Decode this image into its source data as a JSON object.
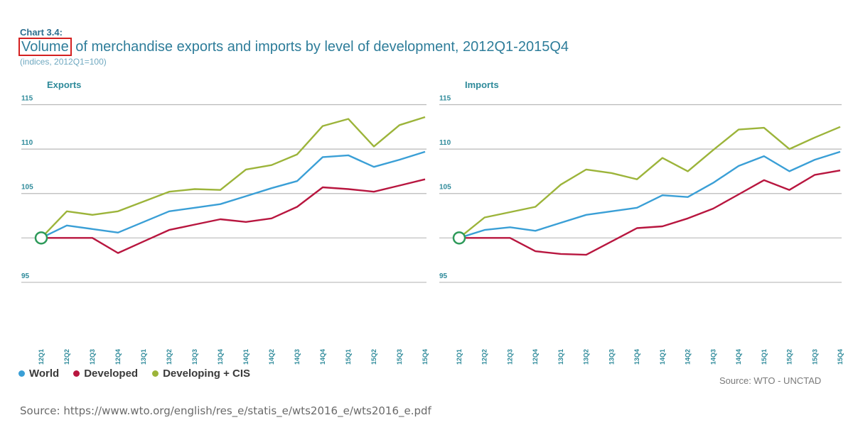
{
  "header": {
    "chart_label": "Chart 3.4:",
    "title_highlight": "Volume",
    "title_rest": " of merchandise exports and imports by level of development, 2012Q1-2015Q4",
    "subtitle": "(indices, 2012Q1=100)"
  },
  "legend": [
    {
      "name": "World",
      "color": "#3a9fd6"
    },
    {
      "name": "Developed",
      "color": "#b8163f"
    },
    {
      "name": "Developing + CIS",
      "color": "#9cb43a"
    }
  ],
  "source_short": "Source:  WTO - UNCTAD",
  "source_url": "Source: https://www.wto.org/english/res_e/statis_e/wts2016_e/wts2016_e.pdf",
  "chart_data": [
    {
      "type": "line",
      "title": "Exports",
      "categories": [
        "12Q1",
        "12Q2",
        "12Q3",
        "12Q4",
        "13Q1",
        "13Q2",
        "13Q3",
        "13Q4",
        "14Q1",
        "14Q2",
        "14Q3",
        "14Q4",
        "15Q1",
        "15Q2",
        "15Q3",
        "15Q4"
      ],
      "yticks": [
        95,
        100,
        105,
        110,
        115
      ],
      "ytick_labels": [
        "95",
        "",
        "105",
        "110",
        "115"
      ],
      "ylim": [
        91,
        116
      ],
      "series": [
        {
          "name": "World",
          "values": [
            100.0,
            101.4,
            101.0,
            100.6,
            101.8,
            103.0,
            103.4,
            103.8,
            104.7,
            105.6,
            106.4,
            109.1,
            109.3,
            108.0,
            108.8,
            109.7
          ]
        },
        {
          "name": "Developed",
          "values": [
            100.0,
            100.0,
            100.0,
            98.3,
            99.6,
            100.9,
            101.5,
            102.1,
            101.8,
            102.2,
            103.5,
            105.7,
            105.5,
            105.2,
            105.9,
            106.6
          ]
        },
        {
          "name": "Developing + CIS",
          "values": [
            100.0,
            103.0,
            102.6,
            103.0,
            104.1,
            105.2,
            105.5,
            105.4,
            107.7,
            108.2,
            109.4,
            112.6,
            113.4,
            110.3,
            112.7,
            113.6
          ]
        }
      ]
    },
    {
      "type": "line",
      "title": "Imports",
      "categories": [
        "12Q1",
        "12Q2",
        "12Q3",
        "12Q4",
        "13Q1",
        "13Q2",
        "13Q3",
        "13Q4",
        "14Q1",
        "14Q2",
        "14Q3",
        "14Q4",
        "15Q1",
        "15Q2",
        "15Q3",
        "15Q4"
      ],
      "yticks": [
        95,
        100,
        105,
        110,
        115
      ],
      "ytick_labels": [
        "95",
        "",
        "105",
        "110",
        "115"
      ],
      "ylim": [
        91,
        116
      ],
      "series": [
        {
          "name": "World",
          "values": [
            100.0,
            100.9,
            101.2,
            100.8,
            101.7,
            102.6,
            103.0,
            103.4,
            104.8,
            104.6,
            106.2,
            108.1,
            109.2,
            107.5,
            108.8,
            109.7
          ]
        },
        {
          "name": "Developed",
          "values": [
            100.0,
            100.0,
            100.0,
            98.5,
            98.2,
            98.1,
            99.6,
            101.1,
            101.3,
            102.2,
            103.3,
            104.9,
            106.5,
            105.4,
            107.1,
            107.6
          ]
        },
        {
          "name": "Developing + CIS",
          "values": [
            100.0,
            102.3,
            102.9,
            103.5,
            106.0,
            107.7,
            107.3,
            106.6,
            109.0,
            107.5,
            109.9,
            112.2,
            112.4,
            110.0,
            111.3,
            112.5
          ]
        }
      ]
    }
  ]
}
